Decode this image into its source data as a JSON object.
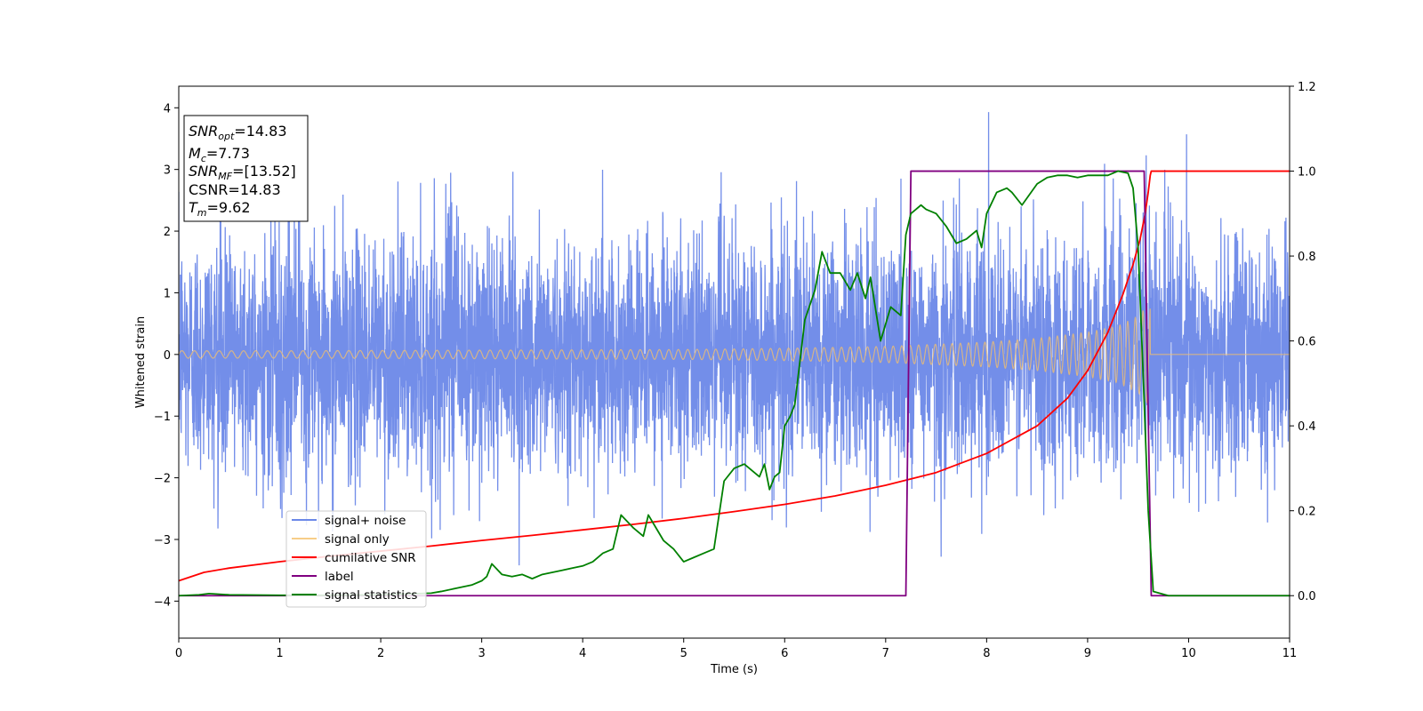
{
  "chart_data": {
    "type": "line",
    "xlabel": "Time (s)",
    "ylabel": "Whitened strain",
    "xlim": [
      0,
      11
    ],
    "ylim": [
      -4.6,
      4.35
    ],
    "ylim_right": [
      -0.1,
      1.2
    ],
    "x_ticks": [
      "0",
      "1",
      "2",
      "3",
      "4",
      "5",
      "6",
      "7",
      "8",
      "9",
      "10",
      "11"
    ],
    "y_ticks": [
      "−4",
      "−3",
      "−2",
      "−1",
      "0",
      "1",
      "2",
      "3",
      "4"
    ],
    "y_ticks_right": [
      "0.0",
      "0.2",
      "0.4",
      "0.6",
      "0.8",
      "1.0",
      "1.2"
    ],
    "grid": false,
    "legend_position": "lower-left",
    "series": [
      {
        "name": "signal+ noise",
        "axis": "left",
        "color": "#6b88e8",
        "description": "white noise (std ~1, peaks to ~3.9) plus chirp signal over 0–9.62 s",
        "peaks": [
          {
            "x": 8.02,
            "y": 3.93
          },
          {
            "x": 9.98,
            "y": 3.57
          },
          {
            "x": 9.58,
            "y": 3.23
          },
          {
            "x": 3.37,
            "y": -3.42
          },
          {
            "x": 7.55,
            "y": -3.28
          }
        ]
      },
      {
        "name": "signal only",
        "axis": "left",
        "color": "#f5c06a",
        "envelope": {
          "x": [
            0,
            1,
            2,
            3,
            4,
            5,
            6,
            7,
            8,
            8.5,
            9,
            9.3,
            9.5,
            9.6,
            9.62,
            9.63,
            11
          ],
          "y": [
            0.06,
            0.06,
            0.065,
            0.07,
            0.075,
            0.08,
            0.1,
            0.13,
            0.2,
            0.26,
            0.36,
            0.46,
            0.62,
            0.8,
            0.8,
            0,
            0
          ]
        }
      },
      {
        "name": "cumilative SNR",
        "axis": "right",
        "color": "#ff0000",
        "x": [
          0,
          0.25,
          0.5,
          1,
          1.5,
          2,
          2.5,
          3,
          3.5,
          4,
          4.5,
          5,
          5.5,
          6,
          6.5,
          7,
          7.5,
          8,
          8.5,
          8.8,
          9,
          9.2,
          9.35,
          9.45,
          9.52,
          9.57,
          9.6,
          9.62,
          9.63,
          11
        ],
        "y": [
          0.035,
          0.055,
          0.065,
          0.08,
          0.093,
          0.105,
          0.117,
          0.13,
          0.142,
          0.155,
          0.168,
          0.182,
          0.198,
          0.215,
          0.235,
          0.26,
          0.29,
          0.335,
          0.4,
          0.465,
          0.53,
          0.62,
          0.71,
          0.78,
          0.84,
          0.9,
          0.95,
          0.99,
          1.0,
          1.0
        ]
      },
      {
        "name": "label",
        "axis": "right",
        "color": "#800080",
        "x": [
          0,
          7.2,
          7.25,
          9.56,
          9.63,
          11
        ],
        "y": [
          0,
          0,
          1,
          1,
          0,
          0
        ]
      },
      {
        "name": "signal statistics",
        "axis": "right",
        "color": "#008000",
        "x": [
          0,
          0.2,
          0.3,
          0.5,
          1,
          1.5,
          2,
          2.5,
          2.6,
          2.8,
          2.9,
          3.0,
          3.05,
          3.1,
          3.2,
          3.3,
          3.4,
          3.5,
          3.6,
          3.7,
          3.8,
          3.9,
          4.0,
          4.1,
          4.2,
          4.3,
          4.38,
          4.5,
          4.6,
          4.65,
          4.7,
          4.8,
          4.9,
          5.0,
          5.1,
          5.2,
          5.3,
          5.4,
          5.5,
          5.6,
          5.7,
          5.75,
          5.8,
          5.85,
          5.9,
          5.95,
          6.0,
          6.05,
          6.1,
          6.2,
          6.3,
          6.37,
          6.45,
          6.55,
          6.65,
          6.72,
          6.8,
          6.85,
          6.95,
          7.05,
          7.15,
          7.2,
          7.25,
          7.3,
          7.35,
          7.4,
          7.5,
          7.6,
          7.7,
          7.8,
          7.9,
          7.95,
          8.0,
          8.1,
          8.2,
          8.25,
          8.35,
          8.5,
          8.6,
          8.7,
          8.8,
          8.9,
          9.0,
          9.1,
          9.2,
          9.3,
          9.4,
          9.45,
          9.5,
          9.55,
          9.6,
          9.65,
          9.8,
          11
        ],
        "y": [
          0,
          0.002,
          0.005,
          0.002,
          0.001,
          0.001,
          0.002,
          0.006,
          0.01,
          0.02,
          0.025,
          0.035,
          0.045,
          0.075,
          0.05,
          0.045,
          0.05,
          0.04,
          0.05,
          0.055,
          0.06,
          0.065,
          0.07,
          0.08,
          0.1,
          0.11,
          0.19,
          0.16,
          0.14,
          0.19,
          0.17,
          0.13,
          0.11,
          0.08,
          0.09,
          0.1,
          0.11,
          0.27,
          0.3,
          0.31,
          0.29,
          0.28,
          0.31,
          0.25,
          0.28,
          0.29,
          0.4,
          0.42,
          0.45,
          0.65,
          0.72,
          0.81,
          0.76,
          0.76,
          0.72,
          0.76,
          0.7,
          0.75,
          0.6,
          0.68,
          0.66,
          0.85,
          0.9,
          0.91,
          0.92,
          0.91,
          0.9,
          0.87,
          0.83,
          0.84,
          0.86,
          0.82,
          0.9,
          0.95,
          0.96,
          0.95,
          0.92,
          0.97,
          0.985,
          0.99,
          0.99,
          0.985,
          0.99,
          0.99,
          0.99,
          1.0,
          0.995,
          0.96,
          0.82,
          0.52,
          0.2,
          0.01,
          0,
          0
        ]
      }
    ],
    "annotation": {
      "lines": [
        {
          "base": "SNR",
          "sub": "opt",
          "value": "=14.83"
        },
        {
          "base": "M",
          "sub": "c",
          "value": "=7.73"
        },
        {
          "base": "SNR",
          "sub": "MF",
          "value": "=[13.52]"
        },
        {
          "base": "CSNR",
          "sub": "",
          "value": "=14.83"
        },
        {
          "base": "T",
          "sub": "m",
          "value": "=9.62"
        }
      ]
    }
  }
}
